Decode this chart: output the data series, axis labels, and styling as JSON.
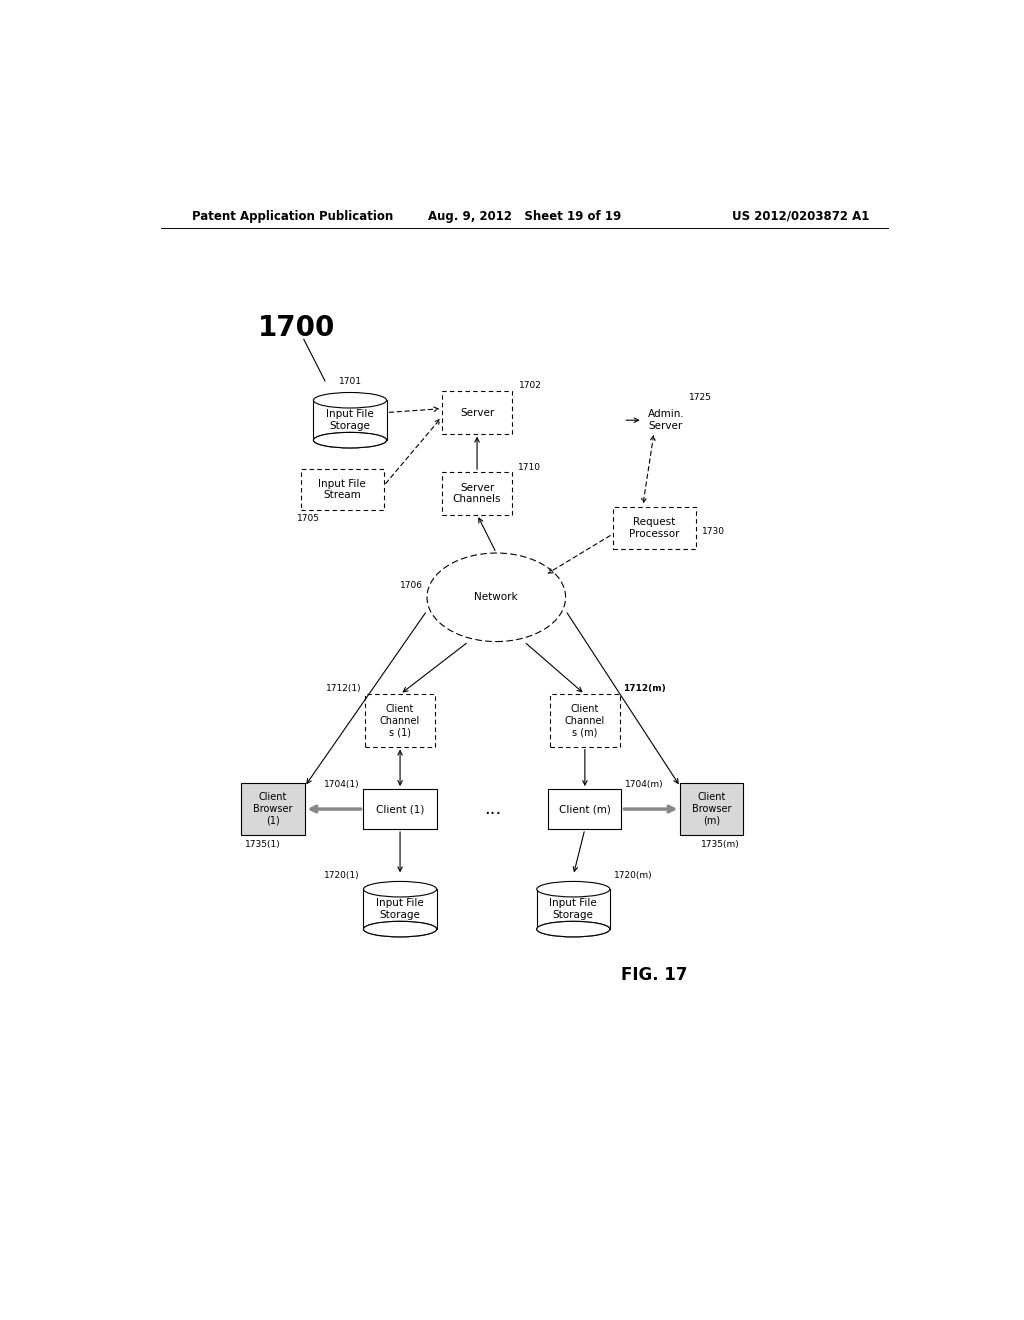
{
  "header_left": "Patent Application Publication",
  "header_mid": "Aug. 9, 2012   Sheet 19 of 19",
  "header_right": "US 2012/0203872 A1",
  "fig_label": "1700",
  "fig_caption": "FIG. 17",
  "background": "#ffffff"
}
